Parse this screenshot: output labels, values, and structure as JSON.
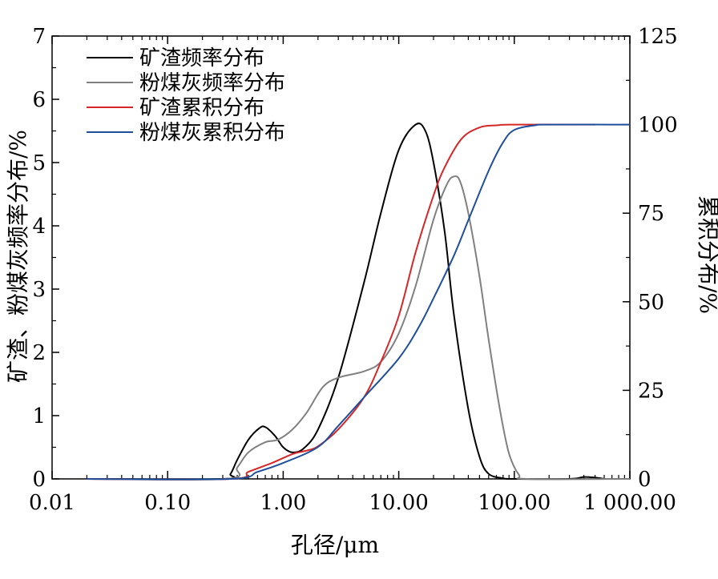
{
  "chart_data": {
    "type": "line",
    "xlabel": "孔径/μm",
    "ylabel_left": "矿渣、粉煤灰频率分布/%",
    "ylabel_right": "累积分布/%",
    "x_scale": "log",
    "xlim": [
      0.01,
      1000
    ],
    "ylim_left": [
      0,
      7
    ],
    "ylim_right": [
      0,
      125
    ],
    "x_tick_labels": [
      "0.01",
      "0.10",
      "1.00",
      "10.00",
      "100.00",
      "1 000.00"
    ],
    "y_left_tick_labels": [
      "0",
      "1",
      "2",
      "3",
      "4",
      "5",
      "6",
      "7"
    ],
    "y_right_tick_labels": [
      "0",
      "25",
      "50",
      "75",
      "100",
      "125"
    ],
    "legend_position": "top-left",
    "series": [
      {
        "name": "矿渣频率分布",
        "axis": "left",
        "color": "#000000",
        "points": [
          [
            0.02,
            0
          ],
          [
            0.3,
            0
          ],
          [
            0.35,
            0.08
          ],
          [
            0.4,
            0.3
          ],
          [
            0.5,
            0.62
          ],
          [
            0.62,
            0.8
          ],
          [
            0.7,
            0.82
          ],
          [
            0.85,
            0.68
          ],
          [
            1.0,
            0.5
          ],
          [
            1.2,
            0.42
          ],
          [
            1.5,
            0.48
          ],
          [
            2.0,
            0.78
          ],
          [
            3.0,
            1.6
          ],
          [
            5.0,
            3.1
          ],
          [
            7.0,
            4.2
          ],
          [
            10.0,
            5.2
          ],
          [
            14.0,
            5.6
          ],
          [
            17.0,
            5.5
          ],
          [
            20.0,
            5.0
          ],
          [
            25.0,
            3.9
          ],
          [
            30.0,
            2.6
          ],
          [
            40.0,
            1.1
          ],
          [
            50.0,
            0.35
          ],
          [
            60.0,
            0.08
          ],
          [
            80.0,
            0.01
          ],
          [
            100.0,
            0
          ],
          [
            300.0,
            0
          ],
          [
            400.0,
            0.03
          ],
          [
            500.0,
            0.02
          ],
          [
            600.0,
            0
          ]
        ]
      },
      {
        "name": "粉煤灰频率分布",
        "axis": "left",
        "color": "#808080",
        "points": [
          [
            0.02,
            0
          ],
          [
            0.32,
            0
          ],
          [
            0.4,
            0.18
          ],
          [
            0.5,
            0.42
          ],
          [
            0.7,
            0.58
          ],
          [
            0.9,
            0.62
          ],
          [
            1.2,
            0.78
          ],
          [
            1.6,
            1.05
          ],
          [
            2.2,
            1.45
          ],
          [
            3.0,
            1.6
          ],
          [
            5.0,
            1.7
          ],
          [
            7.0,
            1.85
          ],
          [
            10.0,
            2.3
          ],
          [
            14.0,
            3.05
          ],
          [
            20.0,
            4.1
          ],
          [
            26.0,
            4.65
          ],
          [
            30.0,
            4.78
          ],
          [
            34.0,
            4.7
          ],
          [
            40.0,
            4.2
          ],
          [
            50.0,
            3.2
          ],
          [
            60.0,
            2.2
          ],
          [
            75.0,
            1.1
          ],
          [
            90.0,
            0.4
          ],
          [
            110.0,
            0.06
          ],
          [
            130.0,
            0
          ],
          [
            1000.0,
            0
          ]
        ]
      },
      {
        "name": "矿渣累积分布",
        "axis": "right",
        "color": "#d62728",
        "points": [
          [
            0.02,
            0
          ],
          [
            0.35,
            0
          ],
          [
            0.5,
            2.0
          ],
          [
            0.8,
            4.5
          ],
          [
            1.2,
            7.0
          ],
          [
            1.6,
            8.0
          ],
          [
            2.0,
            9.2
          ],
          [
            3.0,
            14.0
          ],
          [
            5.0,
            23.0
          ],
          [
            7.0,
            33.0
          ],
          [
            10.0,
            46.0
          ],
          [
            14.0,
            64.0
          ],
          [
            20.0,
            80.0
          ],
          [
            25.0,
            88.0
          ],
          [
            35.0,
            96.0
          ],
          [
            50.0,
            99.2
          ],
          [
            70.0,
            99.8
          ],
          [
            100.0,
            100.0
          ],
          [
            500.0,
            100.0
          ]
        ]
      },
      {
        "name": "粉煤灰累积分布",
        "axis": "right",
        "color": "#1f4e9c",
        "points": [
          [
            0.02,
            0
          ],
          [
            0.35,
            0
          ],
          [
            0.6,
            2.0
          ],
          [
            1.0,
            4.5
          ],
          [
            2.0,
            9.0
          ],
          [
            3.0,
            15.0
          ],
          [
            5.0,
            23.0
          ],
          [
            10.0,
            34.0
          ],
          [
            15.0,
            43.0
          ],
          [
            20.0,
            51.0
          ],
          [
            30.0,
            63.0
          ],
          [
            40.0,
            73.0
          ],
          [
            60.0,
            87.0
          ],
          [
            80.0,
            95.0
          ],
          [
            100.0,
            98.5
          ],
          [
            150.0,
            99.8
          ],
          [
            200.0,
            100.0
          ],
          [
            1000.0,
            100.0
          ]
        ]
      }
    ]
  }
}
